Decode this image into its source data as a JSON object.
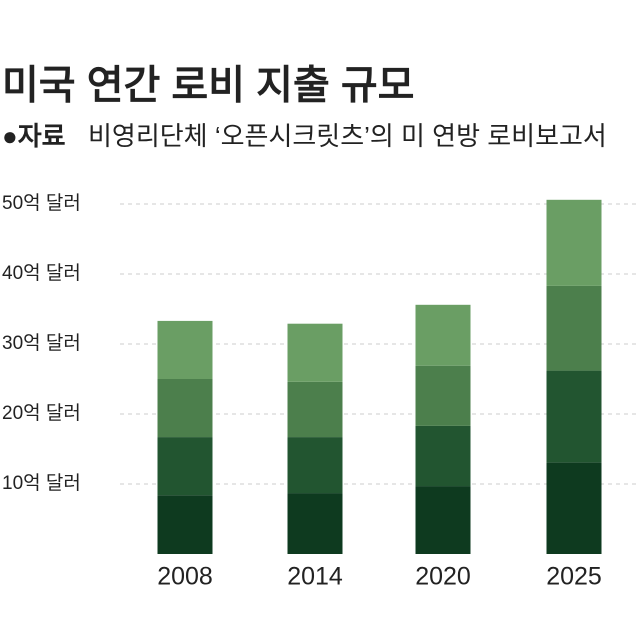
{
  "chart_data": {
    "type": "stacked_bar",
    "title": "미국 연간 로비 지출 규모",
    "source_label": "●자료",
    "source": "비영리단체 ‘오픈시크릿츠’의 미 연방 로비보고서",
    "categories": [
      "2008",
      "2014",
      "2020",
      "2025"
    ],
    "series": [
      {
        "color": "#0e3a1f",
        "values": [
          8.4,
          8.7,
          9.7,
          13.1
        ]
      },
      {
        "color": "#225530",
        "values": [
          8.3,
          8.0,
          8.6,
          13.1
        ]
      },
      {
        "color": "#4c7f4c",
        "values": [
          8.3,
          7.9,
          8.6,
          12.1
        ]
      },
      {
        "color": "#6a9e64",
        "values": [
          8.3,
          8.3,
          8.7,
          12.3
        ]
      }
    ],
    "ylim": [
      0,
      50
    ],
    "yticks": [
      {
        "value": 10,
        "label": "10억 달러"
      },
      {
        "value": 20,
        "label": "20억 달러"
      },
      {
        "value": 30,
        "label": "30억 달러"
      },
      {
        "value": 40,
        "label": "40억 달러"
      },
      {
        "value": 50,
        "label": "50억 달러"
      }
    ],
    "grid": true
  }
}
